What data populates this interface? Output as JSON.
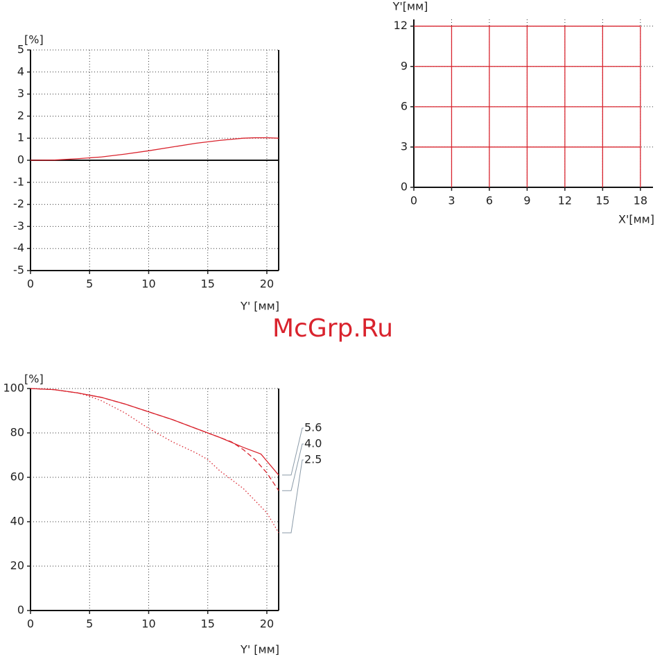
{
  "watermark": "McGrp.Ru",
  "chart_data": [
    {
      "type": "line",
      "y_label": "[%]",
      "x_label": "Y' [мм]",
      "x": [
        0,
        2,
        4,
        6,
        8,
        10,
        12,
        14,
        16,
        18,
        19,
        20,
        21
      ],
      "values": [
        0,
        0.01,
        0.07,
        0.15,
        0.28,
        0.43,
        0.6,
        0.77,
        0.9,
        1.0,
        1.02,
        1.02,
        1.0
      ],
      "color": "#d9232d",
      "xlim": [
        0,
        21
      ],
      "ylim": [
        -5,
        5
      ],
      "xticks": [
        0,
        5,
        10,
        15,
        20
      ],
      "yticks": [
        -5,
        -4,
        -3,
        -2,
        -1,
        0,
        1,
        2,
        3,
        4,
        5
      ],
      "grid": true,
      "zero_line": true,
      "frame": true
    },
    {
      "type": "grid",
      "y_label": "Y'[мм]",
      "x_label": "X'[мм]",
      "color": "#d9232d",
      "xlim": [
        0,
        19
      ],
      "ylim": [
        0,
        12.5
      ],
      "xticks": [
        0,
        3,
        6,
        9,
        12,
        15,
        18
      ],
      "yticks": [
        0,
        3,
        6,
        9,
        12
      ],
      "grid": true,
      "frame": false,
      "series": [
        {
          "x": [
            0,
            18
          ],
          "values": [
            12,
            12
          ]
        },
        {
          "x": [
            0,
            18
          ],
          "values": [
            9,
            9
          ]
        },
        {
          "x": [
            0,
            18
          ],
          "values": [
            6,
            6
          ]
        },
        {
          "x": [
            0,
            18
          ],
          "values": [
            3,
            3
          ]
        },
        {
          "x": [
            3,
            3
          ],
          "values": [
            0,
            12
          ]
        },
        {
          "x": [
            6,
            6
          ],
          "values": [
            0,
            12
          ]
        },
        {
          "x": [
            9,
            9
          ],
          "values": [
            0,
            12
          ]
        },
        {
          "x": [
            12,
            12
          ],
          "values": [
            0,
            12
          ]
        },
        {
          "x": [
            15,
            15
          ],
          "values": [
            0,
            12
          ]
        },
        {
          "x": [
            18,
            18
          ],
          "values": [
            0,
            12
          ]
        }
      ]
    },
    {
      "type": "line",
      "y_label": "[%]",
      "x_label": "Y' [мм]",
      "xlim": [
        0,
        21
      ],
      "ylim": [
        0,
        100
      ],
      "xticks": [
        0,
        5,
        10,
        15,
        20
      ],
      "yticks": [
        0,
        20,
        40,
        60,
        80,
        100
      ],
      "grid": true,
      "frame": true,
      "series": [
        {
          "name": "5.6",
          "color": "#d9232d",
          "dash": "solid",
          "x": [
            0,
            2,
            4,
            6,
            8,
            10,
            12,
            14,
            16,
            18,
            19.5,
            21
          ],
          "values": [
            100,
            99.5,
            98,
            96,
            93,
            89.5,
            86,
            82,
            78,
            73.5,
            70.5,
            61
          ]
        },
        {
          "name": "4.0",
          "color": "#d9232d",
          "dash": "dashed",
          "x": [
            0,
            2,
            4,
            6,
            8,
            10,
            12,
            14,
            16,
            17,
            18,
            19,
            20,
            21
          ],
          "values": [
            100,
            99.5,
            98,
            96,
            93,
            89.5,
            86,
            82,
            78,
            76,
            72.5,
            68,
            62,
            54
          ]
        },
        {
          "name": "2.5",
          "color": "#d9232d",
          "dash": "dotted",
          "x": [
            0,
            2,
            4,
            5,
            6,
            8,
            10,
            12,
            14,
            15,
            16,
            18,
            20,
            21
          ],
          "values": [
            100,
            99.5,
            98,
            96.5,
            94.5,
            89,
            82,
            76,
            71,
            68,
            63,
            55,
            44,
            35
          ]
        }
      ]
    }
  ]
}
